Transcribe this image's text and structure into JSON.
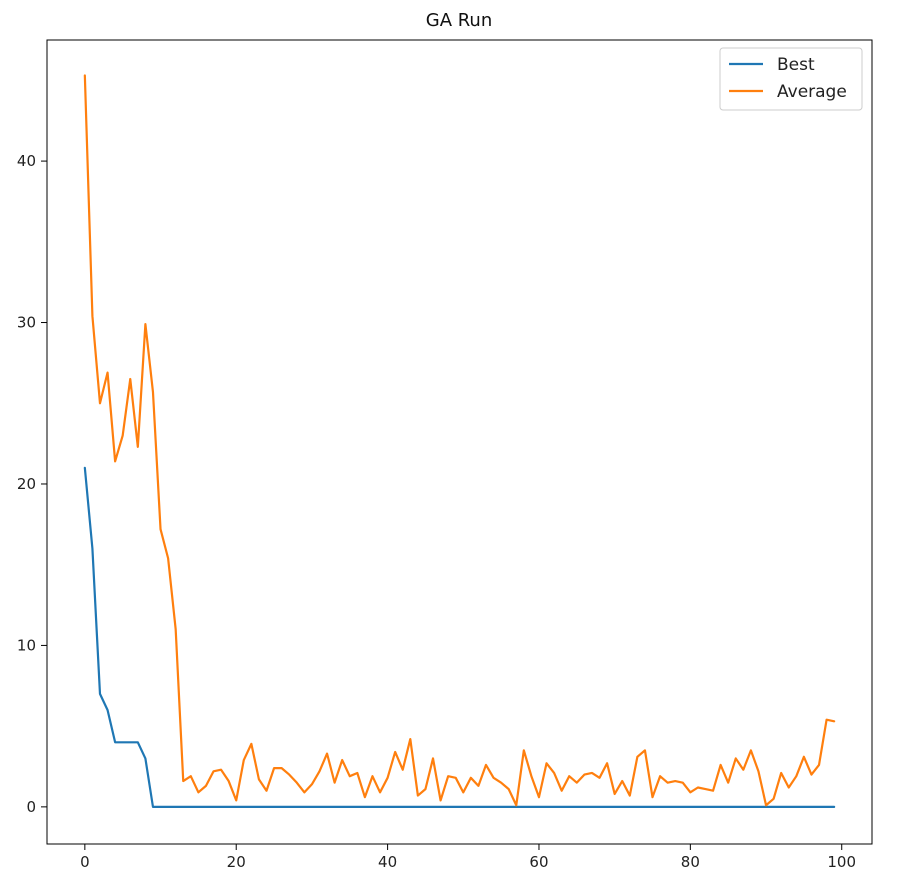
{
  "chart_data": {
    "type": "line",
    "title": "GA Run",
    "xlabel": "",
    "ylabel": "",
    "xlim": [
      -5,
      104
    ],
    "ylim": [
      -2.3,
      47.5
    ],
    "xticks": [
      0,
      20,
      40,
      60,
      80,
      100
    ],
    "yticks": [
      0,
      10,
      20,
      30,
      40
    ],
    "grid": false,
    "legend_position": "top-right",
    "series": [
      {
        "name": "Best",
        "color": "#1f77b4",
        "x": [
          0,
          1,
          2,
          3,
          4,
          5,
          6,
          7,
          8,
          9,
          10,
          11,
          12,
          13,
          14,
          15,
          16,
          17,
          18,
          19,
          20,
          21,
          22,
          23,
          24,
          25,
          26,
          27,
          28,
          29,
          30,
          31,
          32,
          33,
          34,
          35,
          36,
          37,
          38,
          39,
          40,
          41,
          42,
          43,
          44,
          45,
          46,
          47,
          48,
          49,
          50,
          51,
          52,
          53,
          54,
          55,
          56,
          57,
          58,
          59,
          60,
          61,
          62,
          63,
          64,
          65,
          66,
          67,
          68,
          69,
          70,
          71,
          72,
          73,
          74,
          75,
          76,
          77,
          78,
          79,
          80,
          81,
          82,
          83,
          84,
          85,
          86,
          87,
          88,
          89,
          90,
          91,
          92,
          93,
          94,
          95,
          96,
          97,
          98,
          99
        ],
        "values": [
          21,
          16,
          7,
          6,
          4,
          4,
          4,
          4,
          3,
          0,
          0,
          0,
          0,
          0,
          0,
          0,
          0,
          0,
          0,
          0,
          0,
          0,
          0,
          0,
          0,
          0,
          0,
          0,
          0,
          0,
          0,
          0,
          0,
          0,
          0,
          0,
          0,
          0,
          0,
          0,
          0,
          0,
          0,
          0,
          0,
          0,
          0,
          0,
          0,
          0,
          0,
          0,
          0,
          0,
          0,
          0,
          0,
          0,
          0,
          0,
          0,
          0,
          0,
          0,
          0,
          0,
          0,
          0,
          0,
          0,
          0,
          0,
          0,
          0,
          0,
          0,
          0,
          0,
          0,
          0,
          0,
          0,
          0,
          0,
          0,
          0,
          0,
          0,
          0,
          0,
          0,
          0,
          0,
          0,
          0,
          0,
          0,
          0,
          0,
          0
        ]
      },
      {
        "name": "Average",
        "color": "#ff7f0e",
        "x": [
          0,
          1,
          2,
          3,
          4,
          5,
          6,
          7,
          8,
          9,
          10,
          11,
          12,
          13,
          14,
          15,
          16,
          17,
          18,
          19,
          20,
          21,
          22,
          23,
          24,
          25,
          26,
          27,
          28,
          29,
          30,
          31,
          32,
          33,
          34,
          35,
          36,
          37,
          38,
          39,
          40,
          41,
          42,
          43,
          44,
          45,
          46,
          47,
          48,
          49,
          50,
          51,
          52,
          53,
          54,
          55,
          56,
          57,
          58,
          59,
          60,
          61,
          62,
          63,
          64,
          65,
          66,
          67,
          68,
          69,
          70,
          71,
          72,
          73,
          74,
          75,
          76,
          77,
          78,
          79,
          80,
          81,
          82,
          83,
          84,
          85,
          86,
          87,
          88,
          89,
          90,
          91,
          92,
          93,
          94,
          95,
          96,
          97,
          98,
          99
        ],
        "values": [
          45.3,
          30.4,
          25.0,
          26.9,
          21.4,
          23.0,
          26.5,
          22.3,
          29.9,
          25.7,
          17.2,
          15.4,
          11.0,
          1.6,
          1.9,
          0.9,
          1.3,
          2.2,
          2.3,
          1.6,
          0.4,
          2.9,
          3.9,
          1.7,
          1.0,
          2.4,
          2.4,
          2.0,
          1.5,
          0.9,
          1.4,
          2.2,
          3.3,
          1.5,
          2.9,
          1.9,
          2.1,
          0.6,
          1.9,
          0.9,
          1.8,
          3.4,
          2.3,
          4.2,
          0.7,
          1.1,
          3.0,
          0.4,
          1.9,
          1.8,
          0.9,
          1.8,
          1.3,
          2.6,
          1.8,
          1.5,
          1.1,
          0.1,
          3.5,
          1.9,
          0.6,
          2.7,
          2.1,
          1.0,
          1.9,
          1.5,
          2.0,
          2.1,
          1.8,
          2.7,
          0.8,
          1.6,
          0.7,
          3.1,
          3.5,
          0.6,
          1.9,
          1.5,
          1.6,
          1.5,
          0.9,
          1.2,
          1.1,
          1.0,
          2.6,
          1.5,
          3.0,
          2.3,
          3.5,
          2.2,
          0.1,
          0.5,
          2.1,
          1.2,
          1.9,
          3.1,
          2.0,
          2.6,
          5.4,
          5.3
        ]
      }
    ]
  }
}
